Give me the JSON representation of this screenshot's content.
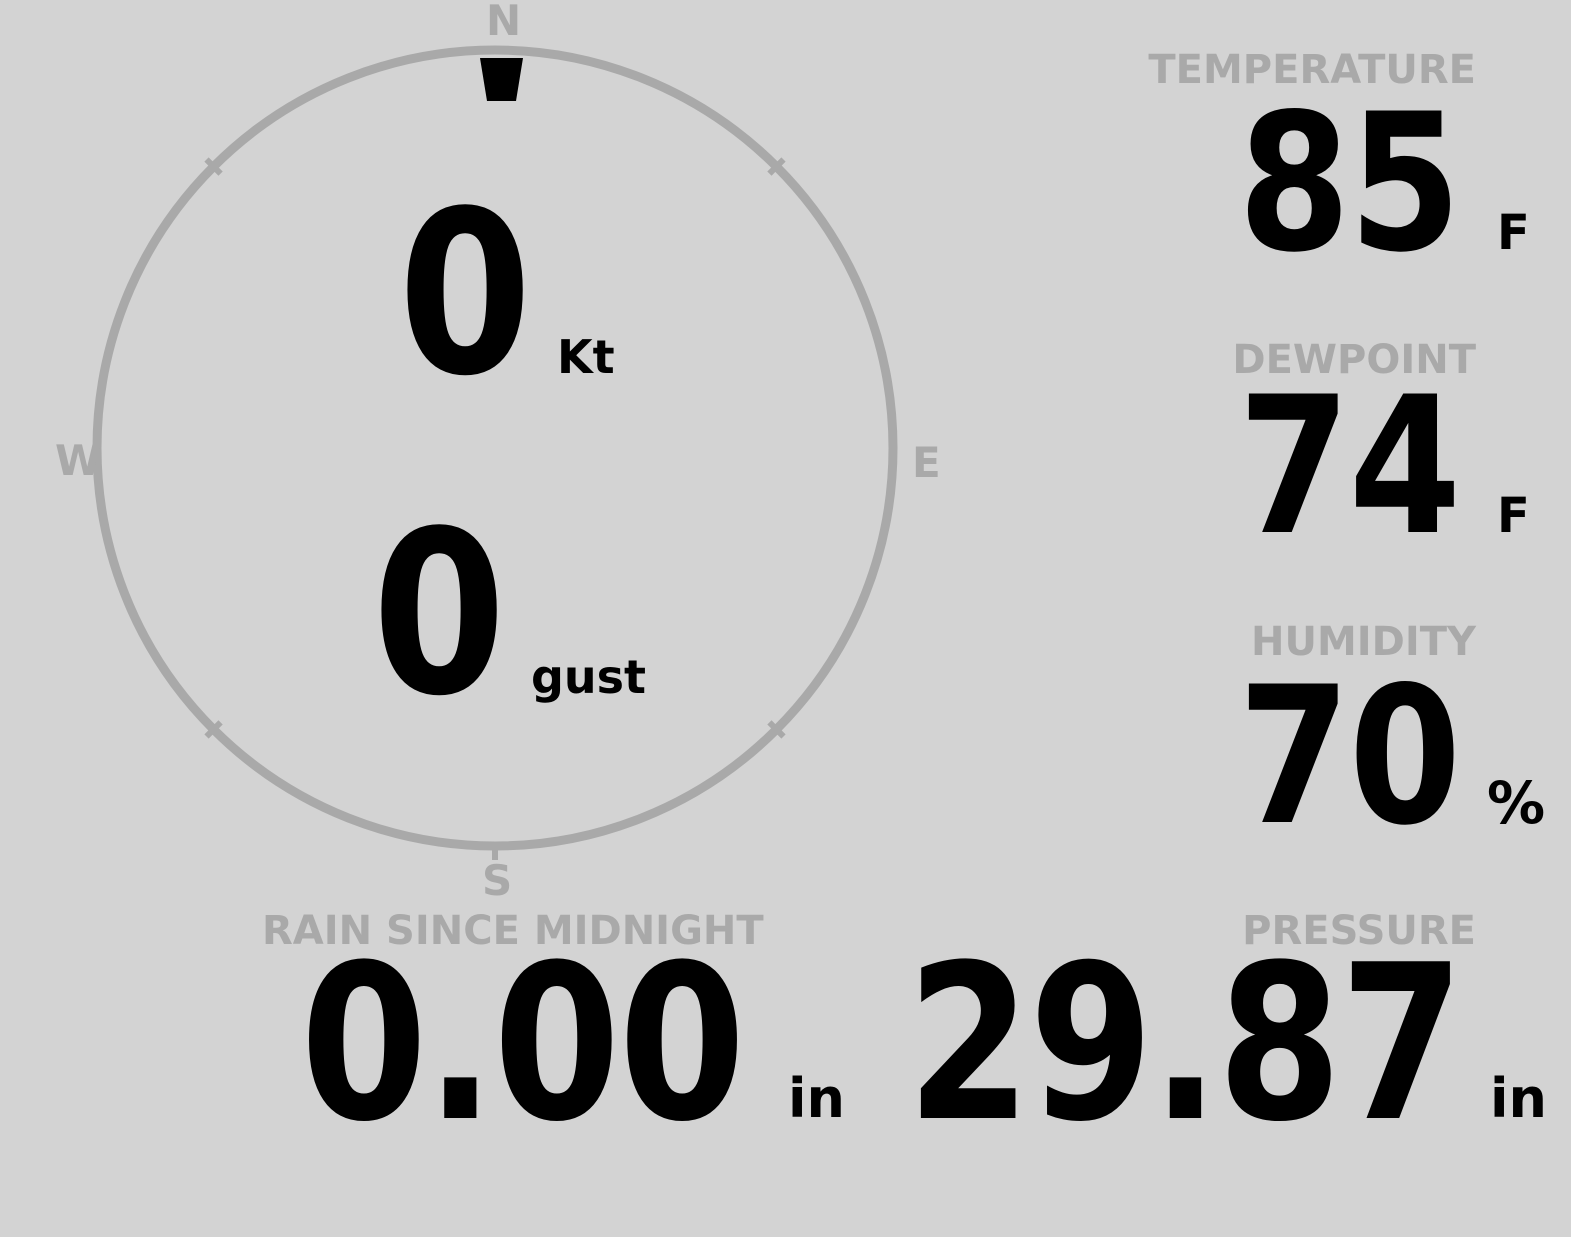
{
  "colors": {
    "background": "#d3d3d3",
    "muted": "#a9a9a9",
    "ink": "#000000"
  },
  "compass": {
    "north": "N",
    "east": "E",
    "south": "S",
    "west": "W",
    "wind_direction_deg": 0
  },
  "wind": {
    "speed_value": "0",
    "speed_unit": "Kt",
    "gust_value": "0",
    "gust_unit": "gust"
  },
  "temperature": {
    "label": "TEMPERATURE",
    "value": "85",
    "unit": "F"
  },
  "dewpoint": {
    "label": "DEWPOINT",
    "value": "74",
    "unit": "F"
  },
  "humidity": {
    "label": "HUMIDITY",
    "value": "70",
    "unit": "%"
  },
  "pressure": {
    "label": "PRESSURE",
    "value": "29.87",
    "unit": "in"
  },
  "rain": {
    "label": "RAIN SINCE MIDNIGHT",
    "value": "0.00",
    "unit": "in"
  }
}
